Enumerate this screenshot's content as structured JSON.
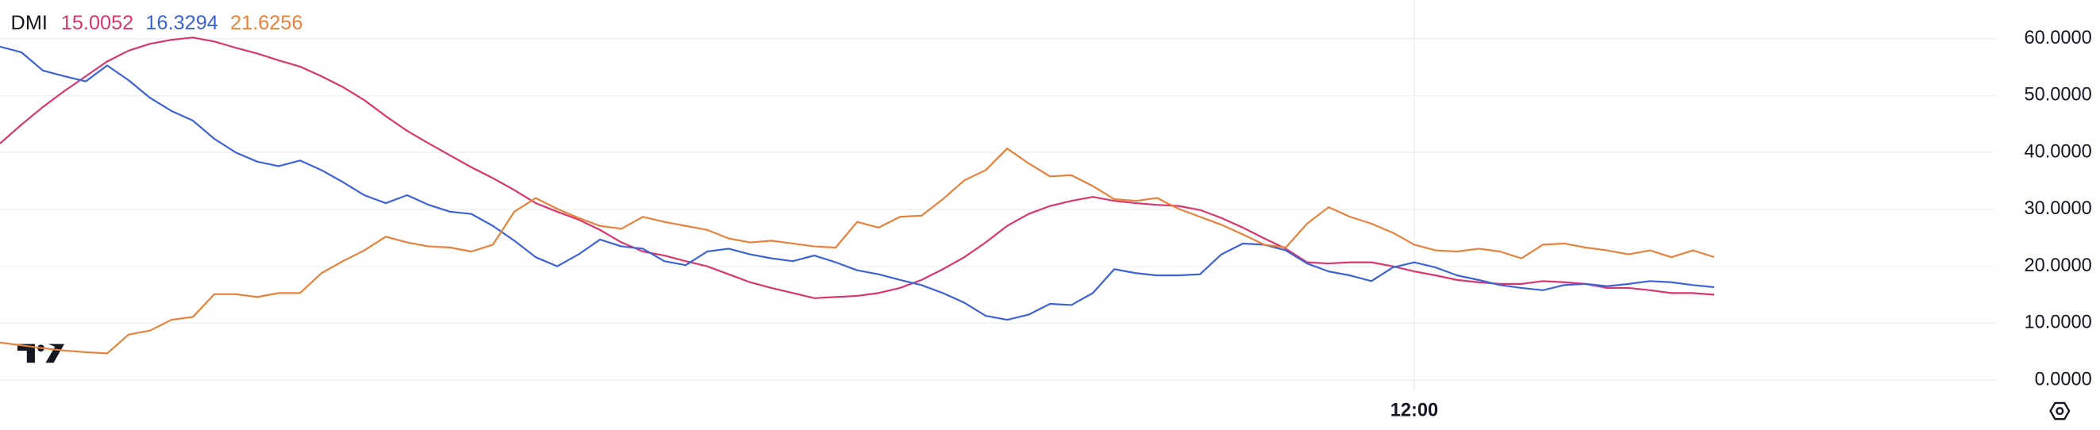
{
  "chart_data": {
    "type": "line",
    "title": "DMI",
    "categories": [
      null,
      null,
      null,
      null,
      null,
      null,
      null,
      null,
      null,
      null,
      null,
      null,
      null,
      null,
      null,
      null,
      null,
      null,
      null,
      null,
      null,
      null,
      null,
      null,
      null,
      null,
      null,
      null,
      null,
      null,
      null,
      null,
      null,
      null,
      null,
      null,
      null,
      null,
      null,
      null,
      null,
      null,
      null,
      null,
      null,
      null,
      null,
      null,
      null,
      null,
      null,
      null,
      null,
      null,
      null,
      null,
      null,
      null,
      null,
      null,
      null,
      null,
      null,
      null,
      null,
      null,
      "12:00",
      null,
      null,
      null,
      null,
      null,
      null,
      null,
      null,
      null,
      null,
      null,
      null,
      null,
      null
    ],
    "series": [
      {
        "color": "#d9366f",
        "values": [
          41.6,
          44.9,
          48.0,
          50.8,
          53.4,
          56.0,
          57.9,
          59.1,
          59.8,
          60.2,
          59.5,
          58.4,
          57.4,
          56.2,
          55.1,
          53.4,
          51.5,
          49.2,
          46.4,
          43.8,
          41.6,
          39.5,
          37.4,
          35.5,
          33.4,
          31.1,
          29.6,
          28.2,
          26.4,
          24.2,
          22.6,
          21.9,
          20.9,
          20.0,
          18.6,
          17.2,
          16.2,
          15.3,
          14.4,
          14.6,
          14.8,
          15.3,
          16.2,
          17.6,
          19.5,
          21.6,
          24.2,
          27.1,
          29.2,
          30.6,
          31.5,
          32.2,
          31.5,
          31.1,
          30.8,
          30.6,
          29.9,
          28.5,
          26.8,
          24.9,
          23.1,
          20.7,
          20.5,
          20.7,
          20.7,
          20.0,
          19.1,
          18.4,
          17.6,
          17.2,
          16.9,
          16.9,
          17.4,
          17.2,
          16.9,
          16.2,
          16.2,
          15.8,
          15.3,
          15.3,
          15.0052
        ]
      },
      {
        "color": "#3d62d6",
        "values": [
          58.6,
          57.6,
          54.4,
          53.4,
          52.5,
          55.3,
          52.7,
          49.6,
          47.3,
          45.6,
          42.4,
          40.0,
          38.4,
          37.6,
          38.6,
          36.9,
          34.8,
          32.5,
          31.1,
          32.5,
          30.8,
          29.6,
          29.2,
          27.1,
          24.5,
          21.6,
          20.0,
          22.1,
          24.7,
          23.5,
          23.1,
          20.9,
          20.2,
          22.6,
          23.1,
          22.1,
          21.4,
          20.9,
          21.9,
          20.7,
          19.3,
          18.6,
          17.6,
          16.7,
          15.3,
          13.6,
          11.3,
          10.6,
          11.5,
          13.4,
          13.2,
          15.3,
          19.5,
          18.8,
          18.4,
          18.4,
          18.6,
          22.1,
          24.0,
          23.8,
          22.8,
          20.5,
          19.1,
          18.4,
          17.4,
          19.8,
          20.7,
          19.8,
          18.4,
          17.6,
          16.7,
          16.2,
          15.8,
          16.7,
          16.9,
          16.5,
          16.9,
          17.4,
          17.2,
          16.7,
          16.3294
        ]
      },
      {
        "color": "#e8813a",
        "values": [
          6.6,
          6.1,
          5.6,
          5.2,
          4.9,
          4.7,
          8.0,
          8.7,
          10.6,
          11.1,
          15.1,
          15.1,
          14.6,
          15.3,
          15.3,
          18.8,
          20.9,
          22.8,
          25.2,
          24.2,
          23.5,
          23.3,
          22.6,
          23.8,
          29.6,
          32.0,
          30.1,
          28.5,
          27.1,
          26.6,
          28.7,
          27.8,
          27.1,
          26.4,
          24.9,
          24.2,
          24.5,
          24.0,
          23.5,
          23.3,
          27.8,
          26.8,
          28.7,
          28.9,
          31.8,
          35.1,
          36.9,
          40.7,
          38.1,
          35.8,
          36.0,
          34.1,
          31.8,
          31.5,
          32.0,
          30.1,
          28.7,
          27.3,
          25.6,
          23.8,
          23.3,
          27.5,
          30.4,
          28.7,
          27.5,
          25.9,
          23.8,
          22.8,
          22.6,
          23.1,
          22.6,
          21.4,
          23.8,
          24.0,
          23.3,
          22.8,
          22.1,
          22.8,
          21.6,
          22.8,
          21.6256
        ]
      }
    ],
    "ylim": [
      -1.9,
      66.8
    ],
    "yticks": [
      {
        "value": 0,
        "label": "0.0000"
      },
      {
        "value": 10,
        "label": "10.0000"
      },
      {
        "value": 20,
        "label": "20.0000"
      },
      {
        "value": 30,
        "label": "30.0000"
      },
      {
        "value": 40,
        "label": "40.0000"
      },
      {
        "value": 50,
        "label": "50.0000"
      },
      {
        "value": 60,
        "label": "60.0000"
      }
    ],
    "grid": true
  }
}
